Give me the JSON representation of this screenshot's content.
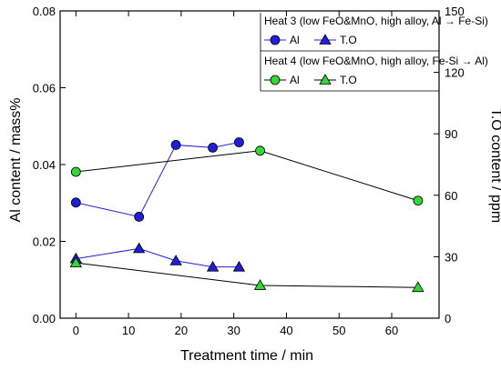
{
  "chart_data": {
    "type": "line",
    "xlabel": "Treatment time / min",
    "ylabel_left": "Al content / mass%",
    "ylabel_right": "T.O content / ppm",
    "xlim": [
      -3,
      69
    ],
    "ylim_left": [
      0,
      0.08
    ],
    "ylim_right": [
      0,
      150
    ],
    "xticks": [
      0,
      10,
      20,
      30,
      40,
      50,
      60
    ],
    "xtick_labels": [
      "0",
      "10",
      "20",
      "30",
      "40",
      "50",
      "60"
    ],
    "yticks_left": [
      0,
      0.02,
      0.04,
      0.06,
      0.08
    ],
    "ytick_labels_left": [
      "0.00",
      "0.02",
      "0.04",
      "0.06",
      "0.08"
    ],
    "yticks_right": [
      0,
      30,
      60,
      90,
      120,
      150
    ],
    "ytick_labels_right": [
      "0",
      "30",
      "60",
      "90",
      "120",
      "150"
    ],
    "grid": false,
    "legend_position": "top-right",
    "legend_groups": [
      {
        "title": "Heat 3 (low FeO&MnO, high alloy, Al → Fe-Si)",
        "entries": [
          "Al",
          "T.O"
        ]
      },
      {
        "title": "Heat 4 (low FeO&MnO, high alloy, Fe-Si → Al)",
        "entries": [
          "Al",
          "T.O"
        ]
      }
    ],
    "series": [
      {
        "name": "Al",
        "group": "Heat 3",
        "axis": "left",
        "marker": "circle",
        "color": "#1f1fdb",
        "line_color": "#1f1fdb",
        "x": [
          0,
          12,
          19,
          26,
          31
        ],
        "y": [
          0.0301,
          0.0264,
          0.0451,
          0.0444,
          0.0458
        ]
      },
      {
        "name": "T.O",
        "group": "Heat 3",
        "axis": "right",
        "marker": "triangle",
        "color": "#1f1fdb",
        "line_color": "#1f1fdb",
        "x": [
          0,
          12,
          19,
          26,
          31
        ],
        "y": [
          29,
          34,
          28,
          25,
          25
        ]
      },
      {
        "name": "Al",
        "group": "Heat 4",
        "axis": "left",
        "marker": "circle",
        "color": "#33d633",
        "line_color": "#000000",
        "x": [
          0,
          35,
          65
        ],
        "y": [
          0.0381,
          0.0436,
          0.0306
        ]
      },
      {
        "name": "T.O",
        "group": "Heat 4",
        "axis": "right",
        "marker": "triangle",
        "color": "#33d633",
        "line_color": "#000000",
        "x": [
          0,
          35,
          65
        ],
        "y": [
          27,
          16,
          15
        ]
      }
    ]
  }
}
